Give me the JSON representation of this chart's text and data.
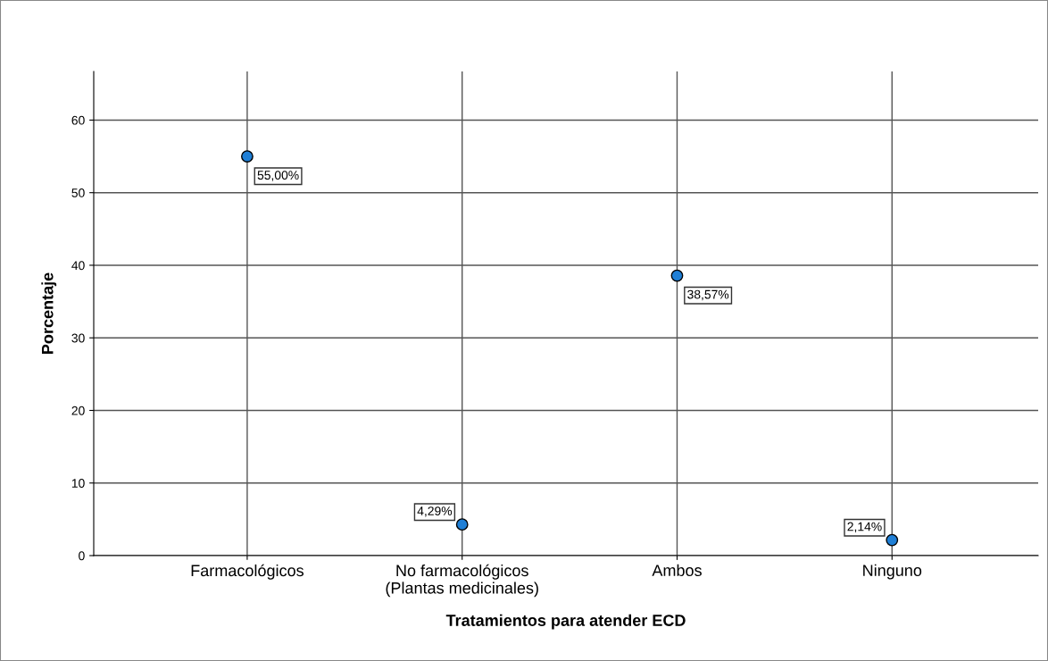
{
  "chart_data": {
    "type": "scatter",
    "xlabel": "Tratamientos para atender ECD",
    "ylabel": "Porcentaje",
    "categories": [
      "Farmacológicos",
      "No farmacológicos\n(Plantas medicinales)",
      "Ambos",
      "Ninguno"
    ],
    "values": [
      55.0,
      4.29,
      38.57,
      2.14
    ],
    "value_labels": [
      "55,00%",
      "4,29%",
      "38,57%",
      "2,14%"
    ],
    "color": "#1f7fd6",
    "marker": "circle",
    "grid": true,
    "ylim": [
      0,
      66.7
    ],
    "yticks": [
      0,
      10,
      20,
      30,
      40,
      50,
      60
    ]
  }
}
